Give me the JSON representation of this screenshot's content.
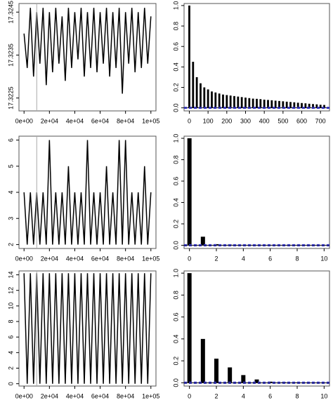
{
  "chart_data": [
    {
      "type": "line",
      "color": "#000000",
      "x": [
        0,
        2500,
        5000,
        7500,
        10000,
        12500,
        15000,
        17500,
        20000,
        22500,
        25000,
        27500,
        30000,
        32500,
        35000,
        37500,
        40000,
        42500,
        45000,
        47500,
        50000,
        52500,
        55000,
        57500,
        60000,
        62500,
        65000,
        67500,
        70000,
        72500,
        75000,
        77500,
        80000,
        82500,
        85000,
        87500,
        90000,
        92500,
        95000,
        97500,
        100000
      ],
      "values": [
        17.324,
        17.3232,
        17.3246,
        17.323,
        17.3245,
        17.3233,
        17.3246,
        17.3228,
        17.3245,
        17.3231,
        17.3246,
        17.3233,
        17.3244,
        17.3229,
        17.3246,
        17.3232,
        17.3245,
        17.3234,
        17.3246,
        17.323,
        17.3245,
        17.3232,
        17.3246,
        17.3231,
        17.3245,
        17.3233,
        17.3246,
        17.323,
        17.3245,
        17.3232,
        17.3246,
        17.3226,
        17.3245,
        17.3233,
        17.3246,
        17.3231,
        17.3245,
        17.3232,
        17.3246,
        17.3233,
        17.3244
      ],
      "vline": 10000,
      "vline_color": "#aaaaaa",
      "xlim": [
        -4000,
        104000
      ],
      "xticks": [
        {
          "value": 0,
          "label": "0e+00"
        },
        {
          "value": 20000,
          "label": "2e+04"
        },
        {
          "value": 40000,
          "label": "4e+04"
        },
        {
          "value": 60000,
          "label": "6e+04"
        },
        {
          "value": 80000,
          "label": "8e+04"
        },
        {
          "value": 100000,
          "label": "1e+05"
        }
      ],
      "ylim": [
        17.3222,
        17.3247
      ],
      "yticks": [
        17.3225,
        17.3235,
        17.3245
      ]
    },
    {
      "type": "bar",
      "color": "#000000",
      "ci_color": "#3333cc",
      "x": [
        0,
        20,
        40,
        60,
        80,
        100,
        120,
        140,
        160,
        180,
        200,
        220,
        240,
        260,
        280,
        300,
        320,
        340,
        360,
        380,
        400,
        420,
        440,
        460,
        480,
        500,
        520,
        540,
        560,
        580,
        600,
        620,
        640,
        660,
        680,
        700,
        720
      ],
      "values": [
        1.0,
        0.45,
        0.3,
        0.24,
        0.2,
        0.18,
        0.16,
        0.15,
        0.14,
        0.13,
        0.125,
        0.12,
        0.115,
        0.11,
        0.105,
        0.1,
        0.095,
        0.09,
        0.088,
        0.085,
        0.08,
        0.077,
        0.074,
        0.07,
        0.067,
        0.064,
        0.06,
        0.057,
        0.054,
        0.05,
        0.047,
        0.044,
        0.04,
        0.037,
        0.034,
        0.03,
        0.028
      ],
      "zero_line": 0,
      "ci_lines": [
        0.005,
        -0.005
      ],
      "xlim": [
        -28,
        748
      ],
      "xticks": [
        0,
        100,
        200,
        300,
        400,
        500,
        600,
        700
      ],
      "ylim": [
        -0.03,
        1.02
      ],
      "yticks": [
        {
          "value": 0,
          "label": "0.0"
        },
        0.2,
        0.4,
        0.6,
        0.8,
        {
          "value": 1,
          "label": "1.0"
        }
      ]
    },
    {
      "type": "line",
      "color": "#000000",
      "x": [
        0,
        2500,
        5000,
        7500,
        10000,
        12500,
        15000,
        17500,
        20000,
        22500,
        25000,
        27500,
        30000,
        32500,
        35000,
        37500,
        40000,
        42500,
        45000,
        47500,
        50000,
        52500,
        55000,
        57500,
        60000,
        62500,
        65000,
        67500,
        70000,
        72500,
        75000,
        77500,
        80000,
        82500,
        85000,
        87500,
        90000,
        92500,
        95000,
        97500,
        100000
      ],
      "values": [
        4,
        2,
        4,
        2,
        4,
        2,
        4,
        2,
        6,
        2,
        4,
        2,
        4,
        2,
        5,
        2,
        4,
        2,
        4,
        2,
        6,
        2,
        4,
        2,
        4,
        2,
        5,
        2,
        4,
        2,
        6,
        2,
        6,
        2,
        4,
        2,
        4,
        2,
        5,
        2,
        4
      ],
      "vline": 10000,
      "vline_color": "#aaaaaa",
      "xlim": [
        -4000,
        104000
      ],
      "xticks": [
        {
          "value": 0,
          "label": "0e+00"
        },
        {
          "value": 20000,
          "label": "2e+04"
        },
        {
          "value": 40000,
          "label": "4e+04"
        },
        {
          "value": 60000,
          "label": "6e+04"
        },
        {
          "value": 80000,
          "label": "8e+04"
        },
        {
          "value": 100000,
          "label": "1e+05"
        }
      ],
      "ylim": [
        1.85,
        6.15
      ],
      "yticks": [
        2,
        3,
        4,
        5,
        6
      ]
    },
    {
      "type": "bar",
      "color": "#000000",
      "ci_color": "#3333cc",
      "x": [
        0,
        1,
        2,
        3,
        4,
        5,
        6,
        7,
        8,
        9,
        10
      ],
      "values": [
        1.0,
        0.08,
        0.01,
        0.005,
        0.003,
        0.002,
        0.002,
        0.001,
        0.001,
        0.001,
        0.001
      ],
      "zero_line": 0,
      "ci_lines": [
        0.006,
        -0.006
      ],
      "xlim": [
        -0.4,
        10.4
      ],
      "xticks": [
        0,
        2,
        4,
        6,
        8,
        10
      ],
      "ylim": [
        -0.03,
        1.02
      ],
      "yticks": [
        {
          "value": 0,
          "label": "0.0"
        },
        0.2,
        0.4,
        0.6,
        0.8,
        {
          "value": 1,
          "label": "1.0"
        }
      ]
    },
    {
      "type": "line",
      "color": "#000000",
      "x": [
        0,
        2500,
        5000,
        7500,
        10000,
        12500,
        15000,
        17500,
        20000,
        22500,
        25000,
        27500,
        30000,
        32500,
        35000,
        37500,
        40000,
        42500,
        45000,
        47500,
        50000,
        52500,
        55000,
        57500,
        60000,
        62500,
        65000,
        67500,
        70000,
        72500,
        75000,
        77500,
        80000,
        82500,
        85000,
        87500,
        90000,
        92500,
        95000,
        97500,
        100000
      ],
      "values": [
        14.2,
        0,
        14.2,
        0,
        14.2,
        0,
        14.2,
        0,
        14.2,
        0,
        14.2,
        0,
        14.2,
        0,
        14.2,
        0,
        14.2,
        0,
        14.2,
        0,
        14.2,
        0,
        14.2,
        0,
        14.2,
        0,
        14.2,
        0,
        14.2,
        0,
        14.2,
        0,
        14.2,
        0,
        14.2,
        0,
        14.2,
        0,
        14.2,
        0,
        14.2
      ],
      "vline": 10000,
      "vline_color": "#aaaaaa",
      "xlim": [
        -4000,
        104000
      ],
      "xticks": [
        {
          "value": 0,
          "label": "0e+00"
        },
        {
          "value": 20000,
          "label": "2e+04"
        },
        {
          "value": 40000,
          "label": "4e+04"
        },
        {
          "value": 60000,
          "label": "6e+04"
        },
        {
          "value": 80000,
          "label": "8e+04"
        },
        {
          "value": 100000,
          "label": "1e+05"
        }
      ],
      "ylim": [
        -0.3,
        14.5
      ],
      "yticks": [
        0,
        2,
        4,
        6,
        8,
        10,
        12,
        14
      ]
    },
    {
      "type": "bar",
      "color": "#000000",
      "ci_color": "#3333cc",
      "x": [
        0,
        1,
        2,
        3,
        4,
        5,
        6,
        7,
        8,
        9,
        10
      ],
      "values": [
        1.0,
        0.4,
        0.22,
        0.14,
        0.07,
        0.03,
        0.01,
        0.005,
        0.003,
        0.002,
        0.001
      ],
      "zero_line": 0,
      "ci_lines": [
        0.006,
        -0.006
      ],
      "xlim": [
        -0.4,
        10.4
      ],
      "xticks": [
        0,
        2,
        4,
        6,
        8,
        10
      ],
      "ylim": [
        -0.03,
        1.02
      ],
      "yticks": [
        {
          "value": 0,
          "label": "0.0"
        },
        0.2,
        0.4,
        0.6,
        0.8,
        {
          "value": 1,
          "label": "1.0"
        }
      ]
    }
  ]
}
